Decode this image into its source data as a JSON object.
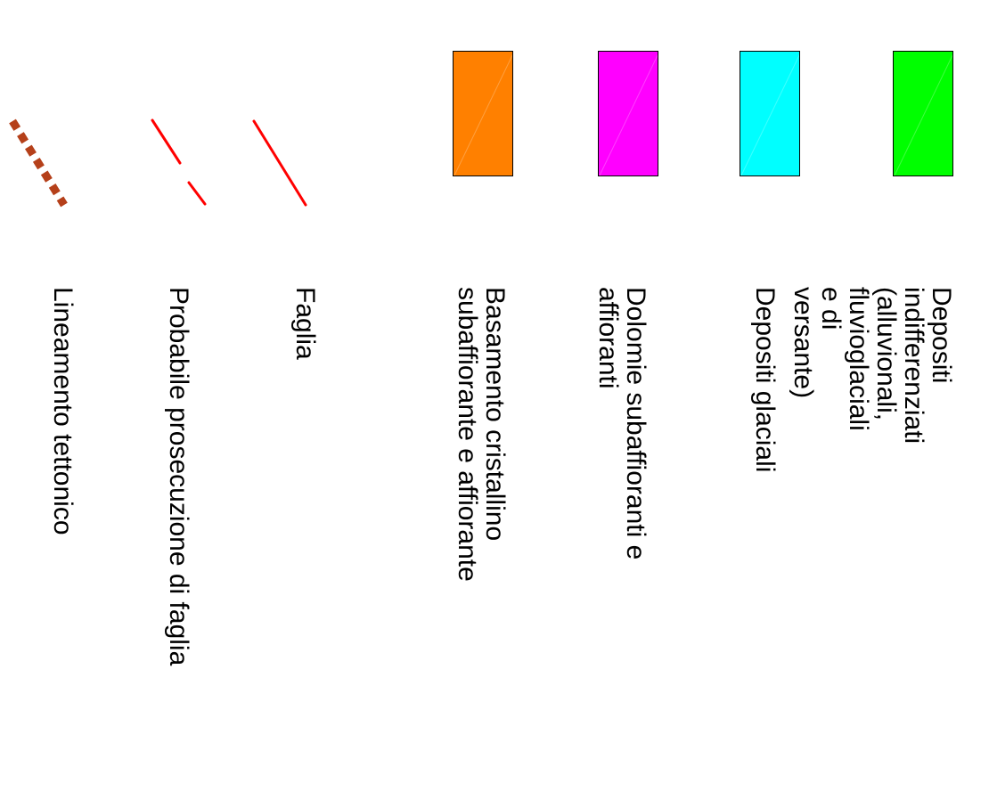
{
  "legend": {
    "items": [
      {
        "id": "alluvial",
        "kind": "swatch",
        "color": "#00ff00",
        "label": "Depositi indifferenziati (alluvionali,\nfluvioglaciali e di versante)"
      },
      {
        "id": "glacial",
        "kind": "swatch",
        "color": "#00ffff",
        "label": "Depositi glaciali"
      },
      {
        "id": "dolomite",
        "kind": "swatch",
        "color": "#ff00ff",
        "label": "Dolomie subaffioranti e\naffioranti"
      },
      {
        "id": "basement",
        "kind": "swatch",
        "color": "#ff8000",
        "label": "Basamento cristallino\nsubaffiorante e affiorante"
      },
      {
        "id": "fault",
        "kind": "line",
        "color": "#ff0000",
        "style": "solid",
        "label": "Faglia"
      },
      {
        "id": "probable-fault",
        "kind": "line",
        "color": "#ff0000",
        "style": "dashed",
        "label": "Probabile prosecuzione di faglia"
      },
      {
        "id": "tectonic-lineament",
        "kind": "line",
        "color": "#b5401a",
        "style": "dotted",
        "label": "Lineamento tettonico"
      }
    ]
  }
}
